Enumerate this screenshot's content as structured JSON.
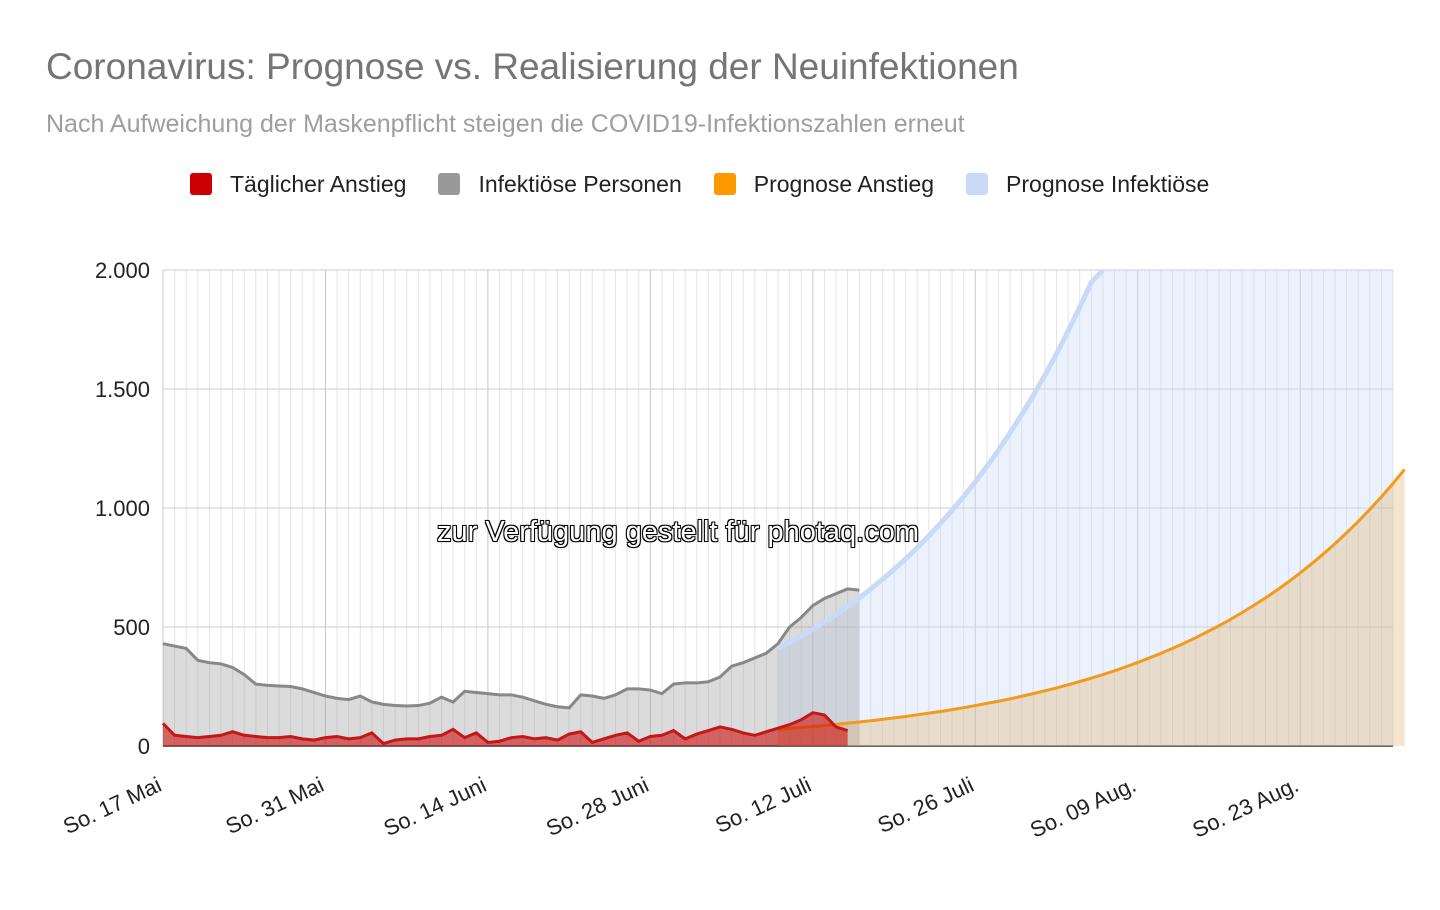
{
  "title": "Coronavirus: Prognose vs. Realisierung der Neuinfektionen",
  "subtitle": "Nach Aufweichung der Maskenpflicht steigen die COVID19-Infektionszahlen erneut",
  "watermark": "zur Verfügung gestellt für photaq.com",
  "legend": [
    {
      "label": "Täglicher Anstieg",
      "color": "#cc0000"
    },
    {
      "label": "Infektiöse Personen",
      "color": "#999999"
    },
    {
      "label": "Prognose Anstieg",
      "color": "#ff9900"
    },
    {
      "label": "Prognose Infektiöse",
      "color": "#c9daf8"
    }
  ],
  "chart_data": {
    "type": "area",
    "x_axis": {
      "start_label": "So. 17 Mai",
      "step": "1 day",
      "count": 107
    },
    "x_ticks": [
      {
        "label": "So. 17 Mai",
        "index": 0
      },
      {
        "label": "So. 31 Mai",
        "index": 14
      },
      {
        "label": "So. 14 Juni",
        "index": 28
      },
      {
        "label": "So. 28 Juni",
        "index": 42
      },
      {
        "label": "So. 12 Juli",
        "index": 56
      },
      {
        "label": "So. 26 Juli",
        "index": 70
      },
      {
        "label": "So. 09 Aug.",
        "index": 84
      },
      {
        "label": "So. 23 Aug.",
        "index": 98
      }
    ],
    "ylim": [
      0,
      2000
    ],
    "y_ticks": [
      {
        "value": 0,
        "label": "0"
      },
      {
        "value": 500,
        "label": "500"
      },
      {
        "value": 1000,
        "label": "1.000"
      },
      {
        "value": 1500,
        "label": "1.500"
      },
      {
        "value": 2000,
        "label": "2.000"
      }
    ],
    "grid": true,
    "legend_position": "top",
    "series": [
      {
        "name": "Infektiöse Personen",
        "color": "#999999",
        "start_index": 0,
        "values": [
          430,
          420,
          410,
          360,
          350,
          345,
          330,
          300,
          260,
          255,
          252,
          250,
          240,
          225,
          210,
          200,
          195,
          210,
          185,
          175,
          170,
          168,
          170,
          180,
          205,
          185,
          230,
          225,
          220,
          215,
          215,
          205,
          190,
          175,
          165,
          160,
          215,
          210,
          200,
          215,
          240,
          240,
          235,
          220,
          260,
          265,
          265,
          270,
          290,
          335,
          350,
          370,
          390,
          430,
          500,
          540,
          590,
          620,
          640,
          660,
          655
        ]
      },
      {
        "name": "Täglicher Anstieg",
        "color": "#cc0000",
        "start_index": 0,
        "values": [
          95,
          45,
          40,
          35,
          40,
          45,
          60,
          45,
          40,
          35,
          35,
          40,
          30,
          25,
          35,
          40,
          30,
          35,
          55,
          10,
          25,
          30,
          30,
          40,
          45,
          70,
          35,
          55,
          15,
          20,
          35,
          40,
          30,
          35,
          25,
          50,
          60,
          15,
          30,
          45,
          55,
          20,
          40,
          45,
          65,
          30,
          50,
          65,
          80,
          70,
          55,
          45,
          60,
          75,
          90,
          110,
          140,
          130,
          80,
          65
        ]
      },
      {
        "name": "Prognose Anstieg",
        "color": "#ff9900",
        "start_index": 53,
        "growth": 0.0522,
        "values_note": "daily",
        "values": [
          70,
          74,
          78,
          82,
          86,
          91,
          96,
          101,
          106,
          112,
          118,
          124,
          131,
          138,
          145,
          153,
          161,
          170,
          179,
          188,
          198,
          209,
          220,
          232,
          244,
          257,
          271,
          285,
          300,
          316,
          333,
          351,
          370,
          389,
          410,
          432,
          455,
          480,
          505,
          532,
          561,
          591,
          622,
          655,
          690,
          727,
          766,
          807,
          850,
          896,
          943,
          994,
          1047,
          1103,
          1162
        ]
      },
      {
        "name": "Prognose Infektiöse",
        "color": "#c9daf8",
        "start_index": 53,
        "values_note": "daily, exceeds 2000 after Juli 25",
        "values": [
          410,
          435,
          462,
          490,
          520,
          552,
          586,
          622,
          660,
          700,
          742,
          786,
          833,
          883,
          935,
          990,
          1048,
          1110,
          1175,
          1243,
          1316,
          1392,
          1473,
          1558,
          1648,
          1743,
          1843,
          1948,
          2060
        ]
      }
    ]
  }
}
